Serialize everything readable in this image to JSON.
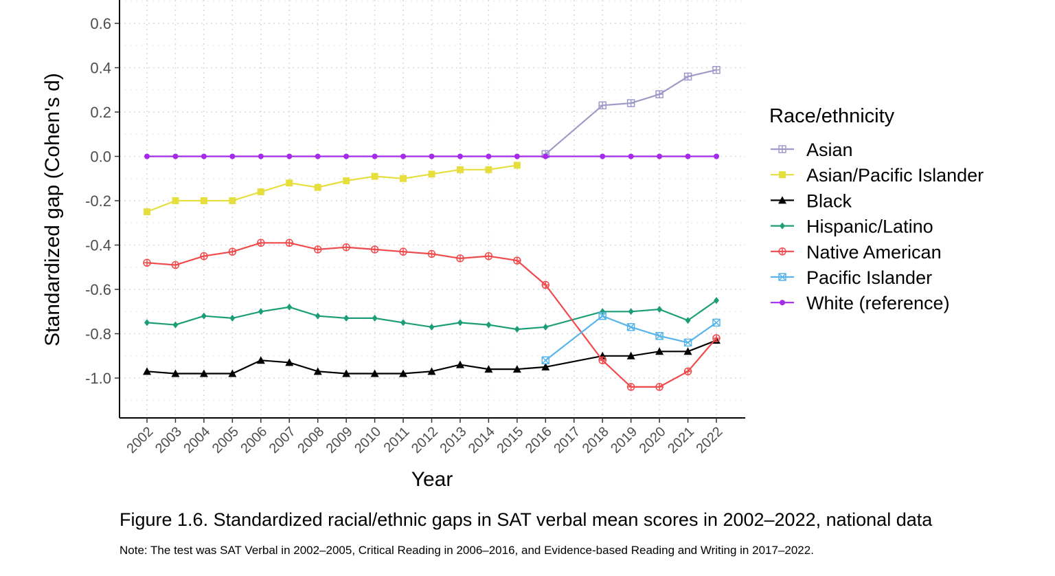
{
  "chart_data": {
    "type": "line",
    "xlabel": "Year",
    "ylabel": "Standardized gap (Cohen's d)",
    "ylim": [
      -1.18,
      0.71
    ],
    "yticks": [
      0.6,
      0.4,
      0.2,
      0.0,
      -0.2,
      -0.4,
      -0.6,
      -0.8,
      -1.0
    ],
    "ytick_labels": [
      "0.6",
      "0.4",
      "0.2",
      "0.0",
      "-0.2",
      "-0.4",
      "-0.6",
      "-0.8",
      "-1.0"
    ],
    "categories": [
      "2002",
      "2003",
      "2004",
      "2005",
      "2006",
      "2007",
      "2008",
      "2009",
      "2010",
      "2011",
      "2012",
      "2013",
      "2014",
      "2015",
      "2016",
      "2017",
      "2018",
      "2019",
      "2020",
      "2021",
      "2022"
    ],
    "grid": true,
    "legend": {
      "title": "Race/ethnicity",
      "position": "right"
    },
    "series": [
      {
        "name": "Asian",
        "color": "#9e9ac8",
        "marker": "square-plus",
        "points": [
          [
            "2016",
            0.01
          ],
          [
            "2018",
            0.23
          ],
          [
            "2019",
            0.24
          ],
          [
            "2020",
            0.28
          ],
          [
            "2021",
            0.36
          ],
          [
            "2022",
            0.39
          ]
        ]
      },
      {
        "name": "Asian/Pacific Islander",
        "color": "#e5de3c",
        "marker": "square",
        "points": [
          [
            "2002",
            -0.25
          ],
          [
            "2003",
            -0.2
          ],
          [
            "2004",
            -0.2
          ],
          [
            "2005",
            -0.2
          ],
          [
            "2006",
            -0.16
          ],
          [
            "2007",
            -0.12
          ],
          [
            "2008",
            -0.14
          ],
          [
            "2009",
            -0.11
          ],
          [
            "2010",
            -0.09
          ],
          [
            "2011",
            -0.1
          ],
          [
            "2012",
            -0.08
          ],
          [
            "2013",
            -0.06
          ],
          [
            "2014",
            -0.06
          ],
          [
            "2015",
            -0.04
          ]
        ]
      },
      {
        "name": "Black",
        "color": "#000000",
        "marker": "triangle",
        "points": [
          [
            "2002",
            -0.97
          ],
          [
            "2003",
            -0.98
          ],
          [
            "2004",
            -0.98
          ],
          [
            "2005",
            -0.98
          ],
          [
            "2006",
            -0.92
          ],
          [
            "2007",
            -0.93
          ],
          [
            "2008",
            -0.97
          ],
          [
            "2009",
            -0.98
          ],
          [
            "2010",
            -0.98
          ],
          [
            "2011",
            -0.98
          ],
          [
            "2012",
            -0.97
          ],
          [
            "2013",
            -0.94
          ],
          [
            "2014",
            -0.96
          ],
          [
            "2015",
            -0.96
          ],
          [
            "2016",
            -0.95
          ],
          [
            "2018",
            -0.9
          ],
          [
            "2019",
            -0.9
          ],
          [
            "2020",
            -0.88
          ],
          [
            "2021",
            -0.88
          ],
          [
            "2022",
            -0.83
          ]
        ]
      },
      {
        "name": "Hispanic/Latino",
        "color": "#1b9e77",
        "marker": "diamond",
        "points": [
          [
            "2002",
            -0.75
          ],
          [
            "2003",
            -0.76
          ],
          [
            "2004",
            -0.72
          ],
          [
            "2005",
            -0.73
          ],
          [
            "2006",
            -0.7
          ],
          [
            "2007",
            -0.68
          ],
          [
            "2008",
            -0.72
          ],
          [
            "2009",
            -0.73
          ],
          [
            "2010",
            -0.73
          ],
          [
            "2011",
            -0.75
          ],
          [
            "2012",
            -0.77
          ],
          [
            "2013",
            -0.75
          ],
          [
            "2014",
            -0.76
          ],
          [
            "2015",
            -0.78
          ],
          [
            "2016",
            -0.77
          ],
          [
            "2018",
            -0.7
          ],
          [
            "2019",
            -0.7
          ],
          [
            "2020",
            -0.69
          ],
          [
            "2021",
            -0.74
          ],
          [
            "2022",
            -0.65
          ]
        ]
      },
      {
        "name": "Native American",
        "color": "#f0494b",
        "marker": "circle-plus",
        "points": [
          [
            "2002",
            -0.48
          ],
          [
            "2003",
            -0.49
          ],
          [
            "2004",
            -0.45
          ],
          [
            "2005",
            -0.43
          ],
          [
            "2006",
            -0.39
          ],
          [
            "2007",
            -0.39
          ],
          [
            "2008",
            -0.42
          ],
          [
            "2009",
            -0.41
          ],
          [
            "2010",
            -0.42
          ],
          [
            "2011",
            -0.43
          ],
          [
            "2012",
            -0.44
          ],
          [
            "2013",
            -0.46
          ],
          [
            "2014",
            -0.45
          ],
          [
            "2015",
            -0.47
          ],
          [
            "2016",
            -0.58
          ],
          [
            "2018",
            -0.92
          ],
          [
            "2019",
            -1.04
          ],
          [
            "2020",
            -1.04
          ],
          [
            "2021",
            -0.97
          ],
          [
            "2022",
            -0.82
          ]
        ]
      },
      {
        "name": "Pacific Islander",
        "color": "#56b4e9",
        "marker": "square-x",
        "points": [
          [
            "2016",
            -0.92
          ],
          [
            "2018",
            -0.72
          ],
          [
            "2019",
            -0.77
          ],
          [
            "2020",
            -0.81
          ],
          [
            "2021",
            -0.84
          ],
          [
            "2022",
            -0.75
          ]
        ]
      },
      {
        "name": "White (reference)",
        "color": "#a52aeb",
        "marker": "circle",
        "points": [
          [
            "2002",
            0.0
          ],
          [
            "2003",
            0.0
          ],
          [
            "2004",
            0.0
          ],
          [
            "2005",
            0.0
          ],
          [
            "2006",
            0.0
          ],
          [
            "2007",
            0.0
          ],
          [
            "2008",
            0.0
          ],
          [
            "2009",
            0.0
          ],
          [
            "2010",
            0.0
          ],
          [
            "2011",
            0.0
          ],
          [
            "2012",
            0.0
          ],
          [
            "2013",
            0.0
          ],
          [
            "2014",
            0.0
          ],
          [
            "2015",
            0.0
          ],
          [
            "2016",
            0.0
          ],
          [
            "2018",
            0.0
          ],
          [
            "2019",
            0.0
          ],
          [
            "2020",
            0.0
          ],
          [
            "2021",
            0.0
          ],
          [
            "2022",
            0.0
          ]
        ]
      }
    ]
  },
  "caption": "Figure 1.6. Standardized racial/ethnic gaps in SAT verbal mean scores in 2002–2022, national data",
  "note": "Note: The test was SAT Verbal in 2002–2005, Critical Reading in 2006–2016, and Evidence-based Reading and Writing in 2017–2022."
}
